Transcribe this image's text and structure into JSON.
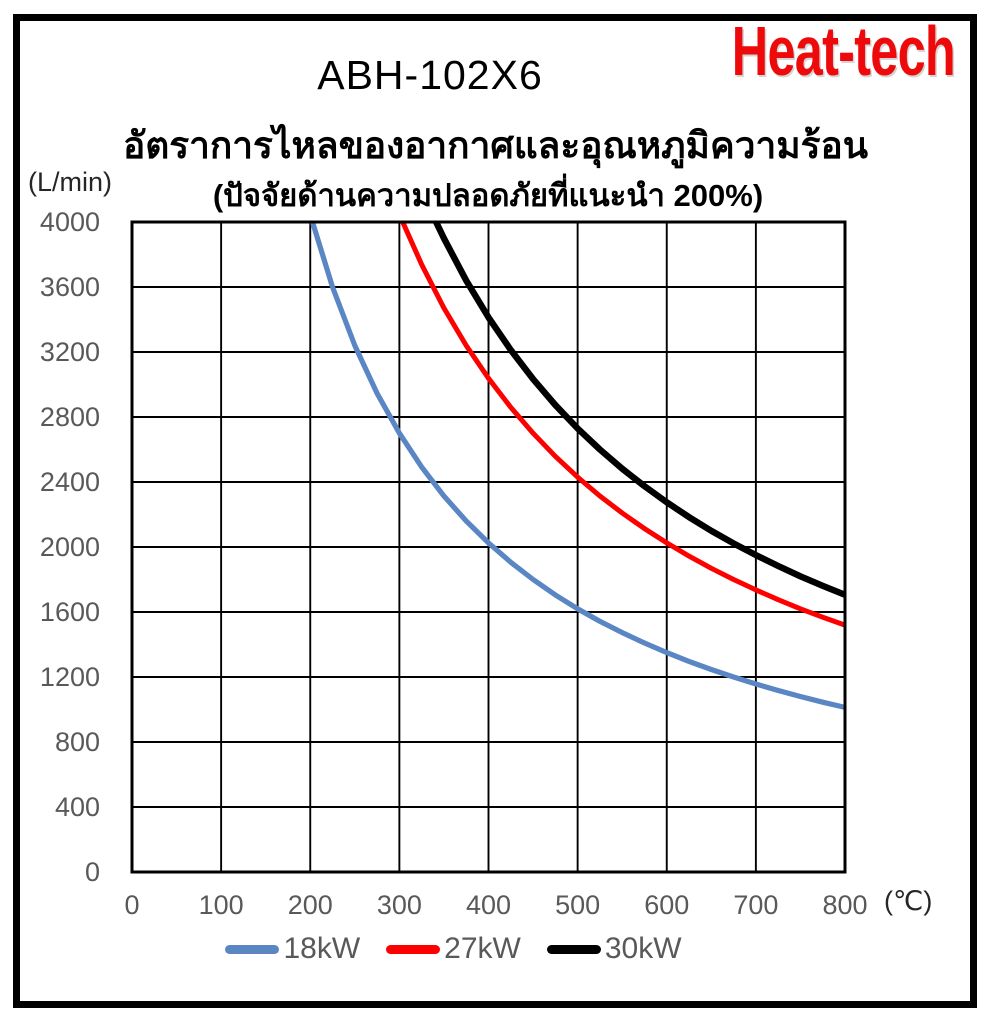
{
  "brand": {
    "logo_text": "Heat-tech",
    "logo_color": "#ee0a0a"
  },
  "header": {
    "model": "ABH-102X6",
    "title_thai": "อัตราการไหลของอากาศและอุณหภูมิความร้อน",
    "subtitle_thai": "(ปัจจัยด้านความปลอดภัยที่แนะนำ 200%)"
  },
  "chart_data": {
    "type": "line",
    "title": "อัตราการไหลของอากาศและอุณหภูมิความร้อน",
    "subtitle": "(ปัจจัยด้านความปลอดภัยที่แนะนำ 200%)",
    "xlabel": "(℃)",
    "ylabel": "(L/min)",
    "xlim": [
      0,
      800
    ],
    "ylim": [
      0,
      4000
    ],
    "x_ticks": [
      0,
      100,
      200,
      300,
      400,
      500,
      600,
      700,
      800
    ],
    "y_ticks": [
      0,
      400,
      800,
      1200,
      1600,
      2000,
      2400,
      2800,
      3200,
      3600,
      4000
    ],
    "grid": true,
    "grid_color": "#000000",
    "legend_position": "bottom",
    "series": [
      {
        "name": "18kW",
        "color": "#5b86c4",
        "stroke_width": 5.2,
        "points": [
          [
            202.5,
            4000
          ],
          [
            225,
            3600
          ],
          [
            250,
            3240
          ],
          [
            275,
            2945
          ],
          [
            300,
            2700
          ],
          [
            325,
            2492
          ],
          [
            350,
            2314
          ],
          [
            375,
            2160
          ],
          [
            400,
            2025
          ],
          [
            425,
            1906
          ],
          [
            450,
            1800
          ],
          [
            475,
            1705
          ],
          [
            500,
            1620
          ],
          [
            525,
            1543
          ],
          [
            550,
            1473
          ],
          [
            575,
            1409
          ],
          [
            600,
            1350
          ],
          [
            625,
            1296
          ],
          [
            650,
            1246
          ],
          [
            675,
            1200
          ],
          [
            700,
            1157
          ],
          [
            725,
            1117
          ],
          [
            750,
            1080
          ],
          [
            775,
            1045
          ],
          [
            800,
            1013
          ]
        ]
      },
      {
        "name": "27kW",
        "color": "#fe0000",
        "stroke_width": 5.0,
        "points": [
          [
            303.75,
            4000
          ],
          [
            325,
            3738
          ],
          [
            350,
            3471
          ],
          [
            375,
            3240
          ],
          [
            400,
            3038
          ],
          [
            425,
            2859
          ],
          [
            450,
            2700
          ],
          [
            475,
            2558
          ],
          [
            500,
            2430
          ],
          [
            525,
            2314
          ],
          [
            550,
            2209
          ],
          [
            575,
            2113
          ],
          [
            600,
            2025
          ],
          [
            625,
            1944
          ],
          [
            650,
            1869
          ],
          [
            675,
            1800
          ],
          [
            700,
            1736
          ],
          [
            725,
            1676
          ],
          [
            750,
            1620
          ],
          [
            775,
            1568
          ],
          [
            800,
            1519
          ]
        ]
      },
      {
        "name": "30kW",
        "color": "#000000",
        "stroke_width": 6.4,
        "points": [
          [
            341.25,
            4000
          ],
          [
            350,
            3900
          ],
          [
            375,
            3640
          ],
          [
            400,
            3413
          ],
          [
            425,
            3212
          ],
          [
            450,
            3033
          ],
          [
            475,
            2874
          ],
          [
            500,
            2730
          ],
          [
            525,
            2600
          ],
          [
            550,
            2482
          ],
          [
            575,
            2374
          ],
          [
            600,
            2275
          ],
          [
            625,
            2184
          ],
          [
            650,
            2100
          ],
          [
            675,
            2022
          ],
          [
            700,
            1950
          ],
          [
            725,
            1883
          ],
          [
            750,
            1820
          ],
          [
            775,
            1761
          ],
          [
            800,
            1706
          ]
        ]
      }
    ]
  }
}
